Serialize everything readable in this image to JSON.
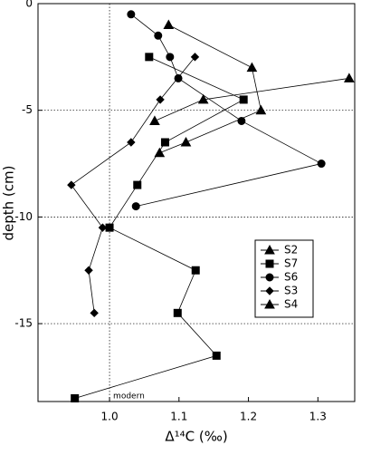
{
  "chart_data": {
    "type": "scatter",
    "xlabel": "Δ¹⁴C (‰)",
    "ylabel": "depth (cm)",
    "xlim": [
      0.897,
      1.353
    ],
    "ylim": [
      -18.65,
      0
    ],
    "xticks": [
      {
        "value": 1,
        "label": "1.0"
      },
      1.1,
      1.2,
      1.3
    ],
    "yticks": [
      0,
      -5,
      -10,
      -15
    ],
    "grid": true,
    "reference_x": 1,
    "reference_label": "modern",
    "legend": "lower-right",
    "color": "#000000",
    "series": [
      {
        "name": "S2",
        "marker": "triangle",
        "x": [
          1.085,
          1.205,
          1.218,
          1.11,
          1.072
        ],
        "values": [
          -1,
          -3,
          -5,
          -6.5,
          -7
        ]
      },
      {
        "name": "S7",
        "marker": "square",
        "x": [
          1.057,
          1.193,
          1.08,
          1.04,
          1.0,
          1.124,
          1.098,
          1.154,
          0.95
        ],
        "values": [
          -2.5,
          -4.5,
          -6.5,
          -8.5,
          -10.5,
          -12.5,
          -14.5,
          -16.5,
          -18.5
        ]
      },
      {
        "name": "S6",
        "marker": "circle",
        "x": [
          1.031,
          1.07,
          1.087,
          1.099,
          1.19,
          1.305,
          1.038
        ],
        "values": [
          -0.5,
          -1.5,
          -2.5,
          -3.5,
          -5.5,
          -7.5,
          -9.5
        ]
      },
      {
        "name": "S3",
        "marker": "diamond",
        "x": [
          1.123,
          1.073,
          1.031,
          0.945,
          0.99,
          0.97,
          0.978
        ],
        "values": [
          -2.5,
          -4.5,
          -6.5,
          -8.5,
          -10.5,
          -12.5,
          -14.5
        ]
      },
      {
        "name": "S4",
        "marker": "triangle",
        "x": [
          1.345,
          1.135,
          1.065
        ],
        "values": [
          -3.5,
          -4.5,
          -5.5
        ]
      }
    ]
  }
}
